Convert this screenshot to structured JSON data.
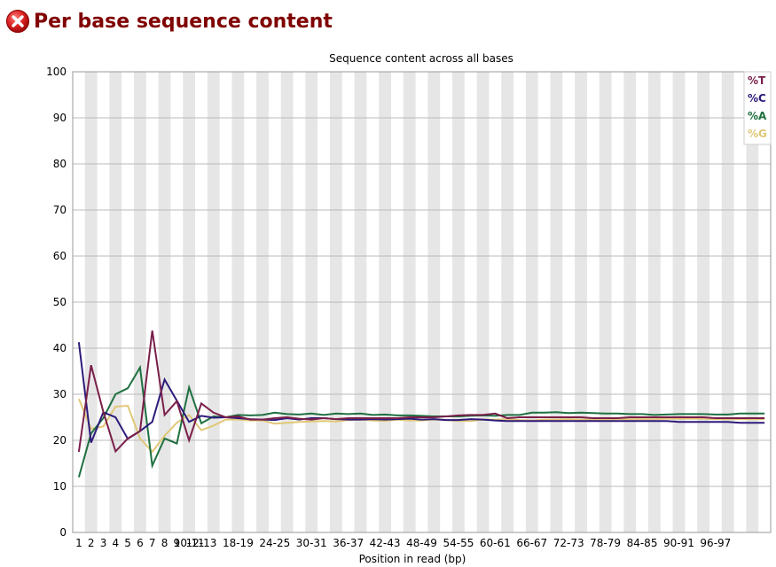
{
  "header": {
    "status_icon": "error-cross-icon",
    "title": "Per base sequence content"
  },
  "colors": {
    "title": "#800000",
    "icon": "#d02020",
    "T": "#7a1f4a",
    "C": "#2e1a7a",
    "A": "#1f7040",
    "G": "#e0c878",
    "stripe": "#e6e6e6",
    "grid": "#bbbbbb"
  },
  "chart_data": {
    "type": "line",
    "title": "Sequence content across all bases",
    "xlabel": "Position in read (bp)",
    "ylabel": "",
    "ylim": [
      0,
      100
    ],
    "yticks": [
      0,
      10,
      20,
      30,
      40,
      50,
      60,
      70,
      80,
      90,
      100
    ],
    "grid": true,
    "legend_position": "top-right",
    "x": [
      "1",
      "2",
      "3",
      "4",
      "5",
      "6",
      "7",
      "8",
      "9",
      "10-11",
      "12-13",
      "14-15",
      "16-17",
      "18-19",
      "20-21",
      "22-23",
      "24-25",
      "26-27",
      "28-29",
      "30-31",
      "32-33",
      "34-35",
      "36-37",
      "38-39",
      "40-41",
      "42-43",
      "44-45",
      "46-47",
      "48-49",
      "50-51",
      "52-53",
      "54-55",
      "56-57",
      "58-59",
      "60-61",
      "62-63",
      "64-65",
      "66-67",
      "68-69",
      "70-71",
      "72-73",
      "74-75",
      "76-77",
      "78-79",
      "80-81",
      "82-83",
      "84-85",
      "86-87",
      "88-89",
      "90-91",
      "92-93",
      "94-95",
      "96-97",
      "98-99",
      "100-101",
      "102-103",
      "104-105"
    ],
    "x_tick_labels": [
      "1",
      "2",
      "3",
      "4",
      "5",
      "6",
      "7",
      "8",
      "9",
      "10-11",
      "12-13",
      "",
      "",
      "18-19",
      "",
      "",
      "24-25",
      "",
      "",
      "30-31",
      "",
      "",
      "36-37",
      "",
      "",
      "42-43",
      "",
      "",
      "48-49",
      "",
      "",
      "54-55",
      "",
      "",
      "60-61",
      "",
      "",
      "66-67",
      "",
      "",
      "72-73",
      "",
      "",
      "78-79",
      "",
      "",
      "84-85",
      "",
      "",
      "90-91",
      "",
      "",
      "96-97",
      "",
      "",
      "",
      ""
    ],
    "series": [
      {
        "name": "%T",
        "color": "#7a1f4a",
        "values": [
          17.5,
          36.3,
          26.2,
          17.6,
          20.4,
          22.0,
          43.8,
          25.5,
          28.5,
          20.0,
          28.0,
          26.0,
          25.0,
          25.2,
          24.5,
          24.5,
          24.8,
          25.0,
          24.7,
          24.5,
          24.8,
          24.6,
          24.8,
          24.8,
          24.8,
          24.8,
          24.8,
          25.0,
          25.0,
          25.0,
          25.2,
          25.4,
          25.5,
          25.5,
          25.8,
          24.8,
          25.0,
          25.0,
          25.0,
          25.0,
          25.0,
          25.0,
          24.8,
          24.8,
          24.8,
          25.0,
          25.0,
          25.0,
          25.0,
          25.0,
          25.0,
          25.0,
          24.8,
          24.8,
          24.8,
          24.8,
          24.8
        ]
      },
      {
        "name": "%C",
        "color": "#2e1a7a",
        "values": [
          41.3,
          19.5,
          26.1,
          25.0,
          20.3,
          22.0,
          24.0,
          33.2,
          28.6,
          24.0,
          25.3,
          24.9,
          25.0,
          24.8,
          24.6,
          24.5,
          24.4,
          24.8,
          24.5,
          24.8,
          24.8,
          24.6,
          24.5,
          24.5,
          24.6,
          24.5,
          24.6,
          24.7,
          24.5,
          24.6,
          24.4,
          24.4,
          24.6,
          24.5,
          24.3,
          24.2,
          24.2,
          24.2,
          24.2,
          24.2,
          24.2,
          24.2,
          24.2,
          24.2,
          24.2,
          24.2,
          24.2,
          24.2,
          24.2,
          24.0,
          24.0,
          24.0,
          24.0,
          24.0,
          23.8,
          23.8,
          23.8
        ]
      },
      {
        "name": "%A",
        "color": "#1f7040",
        "values": [
          12.0,
          21.5,
          24.8,
          30.0,
          31.3,
          35.8,
          14.5,
          20.4,
          19.3,
          31.5,
          23.7,
          25.2,
          25.0,
          25.5,
          25.4,
          25.5,
          26.0,
          25.7,
          25.6,
          25.8,
          25.5,
          25.8,
          25.7,
          25.8,
          25.5,
          25.6,
          25.4,
          25.4,
          25.3,
          25.2,
          25.2,
          25.2,
          25.3,
          25.4,
          25.3,
          25.5,
          25.5,
          26.0,
          26.0,
          26.1,
          25.9,
          26.0,
          25.9,
          25.8,
          25.8,
          25.7,
          25.7,
          25.5,
          25.6,
          25.7,
          25.7,
          25.7,
          25.6,
          25.6,
          25.8,
          25.8,
          25.8
        ]
      },
      {
        "name": "%G",
        "color": "#e0c878",
        "values": [
          29.0,
          22.5,
          23.0,
          27.3,
          27.5,
          20.4,
          17.5,
          21.0,
          23.8,
          25.5,
          22.2,
          23.2,
          24.5,
          24.5,
          24.3,
          24.3,
          23.6,
          23.8,
          24.0,
          24.1,
          24.2,
          24.1,
          24.4,
          24.5,
          24.3,
          24.2,
          24.5,
          24.3,
          24.3,
          24.5,
          24.4,
          24.2,
          24.2,
          24.5,
          24.5,
          24.6,
          24.4,
          24.3,
          24.5,
          24.5,
          24.6,
          24.5,
          24.5,
          24.5,
          24.6,
          24.6,
          24.6,
          24.6,
          24.7,
          24.7,
          24.7,
          24.7,
          24.6,
          24.6,
          24.6,
          24.6,
          24.6
        ]
      }
    ]
  }
}
